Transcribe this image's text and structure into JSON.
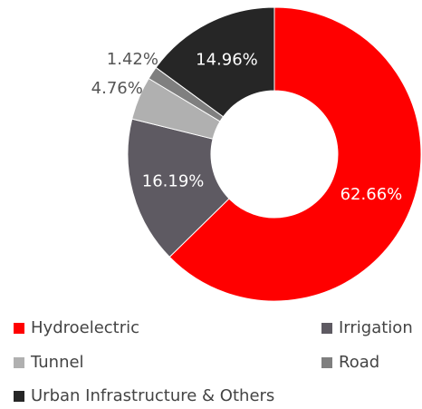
{
  "chart_data": {
    "type": "donut",
    "categories": [
      "Hydroelectric",
      "Irrigation",
      "Tunnel",
      "Road",
      "Urban Infrastructure & Others"
    ],
    "values": [
      62.66,
      16.19,
      4.76,
      1.42,
      14.96
    ],
    "value_labels": [
      "62.66%",
      "16.19%",
      "4.76%",
      "1.42%",
      "14.96%"
    ],
    "colors": [
      "#ff0000",
      "#5e5a62",
      "#b0b0b0",
      "#7f7f7f",
      "#262626"
    ],
    "legend": "bottom"
  }
}
